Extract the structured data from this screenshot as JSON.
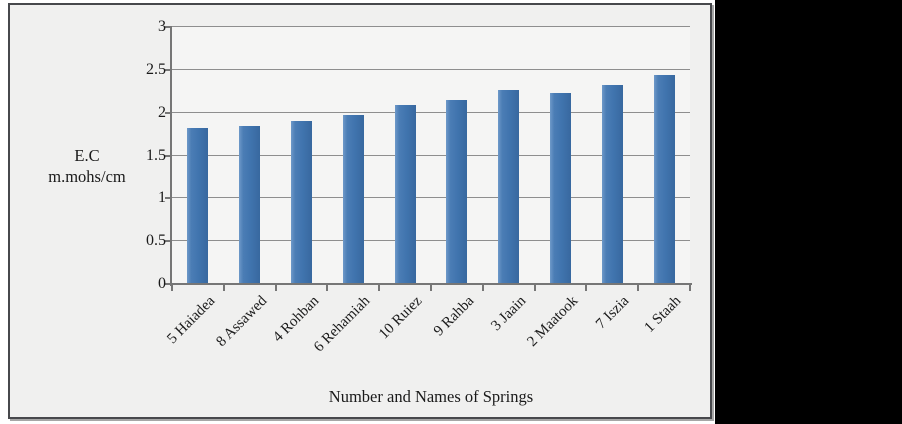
{
  "figure": {
    "ylabel_line1": "E.C",
    "ylabel_line2": "m.mohs/cm",
    "xlabel": "Number and Names of Springs"
  },
  "chart_data": {
    "type": "bar",
    "title": "",
    "categories": [
      "5 Haiadea",
      "8 Assawed",
      "4 Rohban",
      "6 Rehamiah",
      "10 Ruiez",
      "9 Rahba",
      "3 Jaain",
      "2 Maatook",
      "7 Iszia",
      "1 Staah"
    ],
    "values": [
      1.82,
      1.85,
      1.9,
      1.97,
      2.09,
      2.15,
      2.27,
      2.23,
      2.32,
      2.44
    ],
    "xlabel": "Number and Names of Springs",
    "ylabel": "E.C m.mohs/cm",
    "ylim": [
      0,
      3
    ],
    "ytick_step": 0.5,
    "ytick_labels": [
      "0",
      "0.5",
      "1",
      "1.5",
      "2",
      "2.5",
      "3"
    ],
    "grid": true,
    "legend": false,
    "bar_color": "#4074ae"
  },
  "colors": {
    "bar": "#4074ae",
    "gridline": "#8e8e8e",
    "axis": "#767676",
    "panel_background": "#f0f0ef",
    "plot_background": "#f5f5f4",
    "panel_border": "#47484c",
    "right_region": "#000000"
  }
}
